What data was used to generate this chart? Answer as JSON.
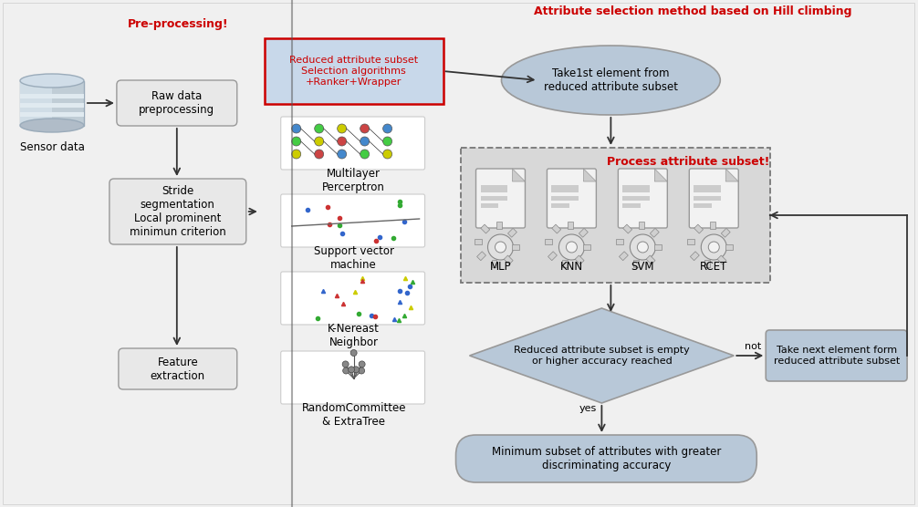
{
  "title_left": "Pre-processing!",
  "title_right": "Attribute selection method based on Hill climbing",
  "sensor_label": "Sensor data",
  "box1_text": "Raw data\npreprocessing",
  "box2_text": "Stride\nsegmentation\nLocal prominent\nminimun criterion",
  "box3_text": "Feature\nextraction",
  "red_box_text": "Reduced attribute subset\nSelection algorithms\n+Ranker+Wrapper",
  "ml_labels": [
    "Multilayer\nPercerptron",
    "Support vector\nmachine",
    "K-Nereast\nNeighbor",
    "RandomCommittee\n& ExtraTree"
  ],
  "ellipse1_text": "Take1st element from\nreduced attribute subset",
  "process_title": "Process attribute subset!",
  "algo_labels": [
    "MLP",
    "KNN",
    "SVM",
    "RCET"
  ],
  "diamond_text": "Reduced attribute subset is empty\nor higher accuracy reached",
  "right_box_text": "Take next element form\nreduced attribute subset",
  "yes_label": "yes",
  "not_label": "not",
  "final_ellipse_text": "Minimum subset of attributes with greater\ndiscriminating accuracy",
  "bg_outer": "#f0f0f0",
  "bg_left_panel": "#e8e8e8",
  "bg_mid_panel": "#c8d8ea",
  "bg_right_panel": "#eeeeee",
  "bg_process_box": "#d8d8d8",
  "box_fill": "#e8e8e8",
  "ellipse_fill": "#b8c8d8",
  "diamond_fill": "#b8c8d8",
  "right_box_fill": "#b8c8d8",
  "final_ellipse_fill": "#b8c8d8",
  "red_color": "#cc0000",
  "arrow_color": "#333333",
  "box_ec": "#999999",
  "dashed_ec": "#888888"
}
